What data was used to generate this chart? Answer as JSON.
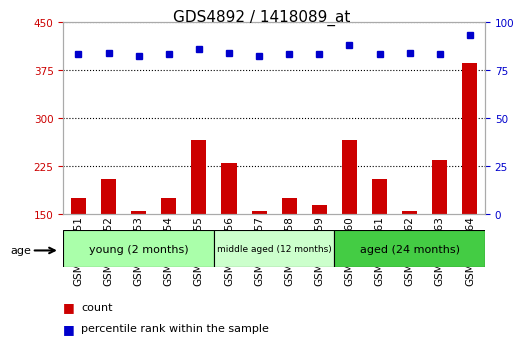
{
  "title": "GDS4892 / 1418089_at",
  "samples": [
    "GSM1230351",
    "GSM1230352",
    "GSM1230353",
    "GSM1230354",
    "GSM1230355",
    "GSM1230356",
    "GSM1230357",
    "GSM1230358",
    "GSM1230359",
    "GSM1230360",
    "GSM1230361",
    "GSM1230362",
    "GSM1230363",
    "GSM1230364"
  ],
  "counts": [
    175,
    205,
    155,
    175,
    265,
    230,
    155,
    175,
    165,
    265,
    205,
    155,
    235,
    385
  ],
  "percentiles": [
    83,
    84,
    82,
    83,
    86,
    84,
    82,
    83,
    83,
    88,
    83,
    84,
    83,
    93
  ],
  "ylim_left": [
    150,
    450
  ],
  "ylim_right": [
    0,
    100
  ],
  "yticks_left": [
    150,
    225,
    300,
    375,
    450
  ],
  "yticks_right": [
    0,
    25,
    50,
    75,
    100
  ],
  "groups": [
    {
      "label": "young (2 months)",
      "start": 0,
      "end": 5,
      "color": "#aaffaa"
    },
    {
      "label": "middle aged (12 months)",
      "start": 5,
      "end": 9,
      "color": "#ccffcc"
    },
    {
      "label": "aged (24 months)",
      "start": 9,
      "end": 14,
      "color": "#44cc44"
    }
  ],
  "bar_color": "#cc0000",
  "dot_color": "#0000cc",
  "bg_color": "#ffffff",
  "plot_bg": "#ffffff",
  "grid_color": "#000000",
  "left_axis_color": "#cc0000",
  "right_axis_color": "#0000cc",
  "title_fontsize": 11,
  "tick_fontsize": 7.5,
  "label_fontsize": 8
}
